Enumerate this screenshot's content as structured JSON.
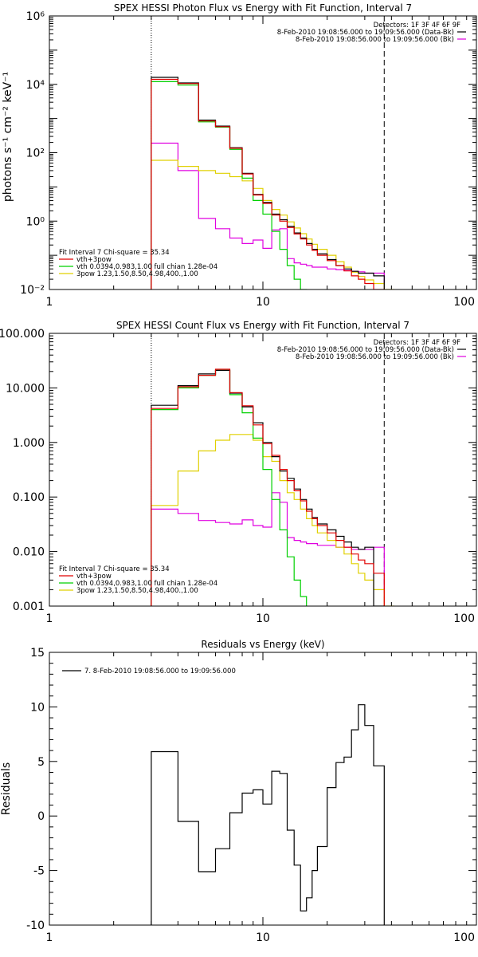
{
  "chart_data": [
    {
      "type": "line",
      "title": "SPEX HESSI Photon Flux vs Energy with Fit Function, Interval 7",
      "ylabel": "photons s⁻¹ cm⁻² keV⁻¹",
      "xscale": "log",
      "yscale": "log",
      "xlim": [
        1,
        100
      ],
      "ylim": [
        0.01,
        1000000
      ],
      "xticks": [
        "1",
        "10",
        "100"
      ],
      "yticks": [
        "10⁻²",
        "10⁰",
        "10²",
        "10⁴",
        "10⁶"
      ],
      "grid": false,
      "vlines": [
        {
          "x": 3,
          "style": "dotted"
        },
        {
          "x": 37,
          "style": "dashed"
        }
      ],
      "legend_top": {
        "position": "top-right",
        "header": "Detectors: 1F 3F 4F 6F 9F",
        "entries": [
          {
            "label": "8-Feb-2010 19:08:56.000 to 19:09:56.000 (Data-Bk)",
            "color": "#000000"
          },
          {
            "label": "8-Feb-2010 19:08:56.000 to 19:09:56.000 (Bk)",
            "color": "#e000e0"
          }
        ]
      },
      "legend_bottom": {
        "position": "bottom-left",
        "header": "Fit Interval 7   Chi-square = 35.34",
        "entries": [
          {
            "label": "vth+3pow",
            "color": "#e00000"
          },
          {
            "label": "vth 0.0394,0.983,1.00  full chian 1.28e-04",
            "color": "#00d000"
          },
          {
            "label": "3pow 1.23,1.50,8.50,4.98,400.,1.00",
            "color": "#e0d000"
          }
        ]
      },
      "series": [
        {
          "name": "Data-Bk",
          "color": "#000000",
          "edges": [
            3,
            4,
            5,
            6,
            7,
            8,
            9,
            10,
            11,
            12,
            13,
            14,
            15,
            16,
            17,
            18,
            20,
            22,
            24,
            26,
            28,
            30,
            33,
            37
          ],
          "values": [
            16000,
            11000,
            900,
            600,
            140,
            25,
            6,
            3.5,
            1.6,
            1.1,
            0.7,
            0.45,
            0.32,
            0.22,
            0.15,
            0.11,
            0.075,
            0.05,
            0.04,
            0.034,
            0.03,
            0.03,
            0.025
          ]
        },
        {
          "name": "vth+3pow",
          "color": "#e00000",
          "edges": [
            3,
            4,
            5,
            6,
            7,
            8,
            9,
            10,
            11,
            12,
            13,
            14,
            15,
            16,
            17,
            18,
            20,
            22,
            24,
            26,
            28,
            30,
            33,
            37
          ],
          "values": [
            14000,
            10500,
            850,
            580,
            135,
            24,
            5.8,
            3.3,
            1.5,
            1.0,
            0.65,
            0.42,
            0.3,
            0.2,
            0.14,
            0.1,
            0.07,
            0.05,
            0.035,
            0.025,
            0.02,
            0.015,
            0.01
          ]
        },
        {
          "name": "vth",
          "color": "#00d000",
          "edges": [
            3,
            4,
            5,
            6,
            7,
            8,
            9,
            10,
            11,
            12,
            13,
            14,
            15,
            16
          ],
          "values": [
            12000,
            9500,
            800,
            560,
            125,
            18,
            4.0,
            1.6,
            0.5,
            0.15,
            0.05,
            0.02,
            0.01
          ]
        },
        {
          "name": "3pow",
          "color": "#e0d000",
          "edges": [
            3,
            4,
            5,
            6,
            7,
            8,
            9,
            10,
            11,
            12,
            13,
            14,
            15,
            16,
            17,
            18,
            20,
            22,
            24,
            26,
            28,
            30,
            33,
            37,
            41
          ],
          "values": [
            60,
            40,
            30,
            25,
            20,
            15,
            9,
            4,
            2.2,
            1.5,
            0.95,
            0.63,
            0.43,
            0.3,
            0.21,
            0.15,
            0.1,
            0.065,
            0.045,
            0.032,
            0.024,
            0.019,
            0.015,
            0.01
          ]
        },
        {
          "name": "Bk",
          "color": "#e000e0",
          "edges": [
            3,
            4,
            5,
            6,
            7,
            8,
            9,
            10,
            11,
            12,
            13,
            14,
            15,
            16,
            17,
            18,
            20,
            22,
            24,
            26,
            28,
            30,
            33,
            37
          ],
          "values": [
            190,
            30,
            1.2,
            0.6,
            0.32,
            0.22,
            0.28,
            0.16,
            0.55,
            0.6,
            0.08,
            0.06,
            0.055,
            0.05,
            0.045,
            0.045,
            0.04,
            0.038,
            0.036,
            0.034,
            0.033,
            0.03,
            0.03
          ]
        }
      ]
    },
    {
      "type": "line",
      "title": "SPEX HESSI Count Flux vs Energy with Fit Function, Interval 7",
      "ylabel": "",
      "xscale": "log",
      "yscale": "log",
      "xlim": [
        1,
        100
      ],
      "ylim": [
        0.001,
        100
      ],
      "xticks": [
        "1",
        "10",
        "100"
      ],
      "yticks": [
        "0.001",
        "0.010",
        "0.100",
        "1.000",
        "10.000",
        "100.000"
      ],
      "grid": false,
      "vlines": [
        {
          "x": 3,
          "style": "dotted"
        },
        {
          "x": 37,
          "style": "dashed"
        }
      ],
      "legend_top": {
        "position": "top-right",
        "header": "Detectors: 1F 3F 4F 6F 9F",
        "entries": [
          {
            "label": "8-Feb-2010 19:08:56.000 to 19:09:56.000 (Data-Bk)",
            "color": "#000000"
          },
          {
            "label": "8-Feb-2010 19:08:56.000 to 19:09:56.000 (Bk)",
            "color": "#e000e0"
          }
        ]
      },
      "legend_bottom": {
        "position": "bottom-left",
        "header": "Fit Interval 7   Chi-square = 35.34",
        "entries": [
          {
            "label": "vth+3pow",
            "color": "#e00000"
          },
          {
            "label": "vth 0.0394,0.983,1.00  full chian 1.28e-04",
            "color": "#00d000"
          },
          {
            "label": "3pow 1.23,1.50,8.50,4.98,400.,1.00",
            "color": "#e0d000"
          }
        ]
      },
      "series": [
        {
          "name": "Data-Bk",
          "color": "#000000",
          "edges": [
            3,
            4,
            5,
            6,
            7,
            8,
            9,
            10,
            11,
            12,
            13,
            14,
            15,
            16,
            17,
            18,
            20,
            22,
            24,
            26,
            28,
            30,
            33,
            37
          ],
          "values": [
            4.8,
            11,
            18,
            21,
            8,
            4.5,
            2.3,
            1.0,
            0.55,
            0.3,
            0.22,
            0.14,
            0.09,
            0.06,
            0.042,
            0.032,
            0.025,
            0.019,
            0.015,
            0.012,
            0.011,
            0.012,
            0.001
          ]
        },
        {
          "name": "vth+3pow",
          "color": "#e00000",
          "edges": [
            3,
            4,
            5,
            6,
            7,
            8,
            9,
            10,
            11,
            12,
            13,
            14,
            15,
            16,
            17,
            18,
            20,
            22,
            24,
            26,
            28,
            30,
            33,
            37
          ],
          "values": [
            4.2,
            10.5,
            17,
            22,
            8.2,
            4.7,
            2.1,
            0.95,
            0.58,
            0.32,
            0.2,
            0.13,
            0.085,
            0.055,
            0.04,
            0.03,
            0.022,
            0.016,
            0.012,
            0.009,
            0.007,
            0.006,
            0.004
          ]
        },
        {
          "name": "vth",
          "color": "#00d000",
          "edges": [
            3,
            4,
            5,
            6,
            7,
            8,
            9,
            10,
            11,
            12,
            13,
            14,
            15,
            16
          ],
          "values": [
            4.0,
            10,
            17,
            21,
            7.5,
            3.5,
            1.2,
            0.32,
            0.09,
            0.025,
            0.008,
            0.003,
            0.0015
          ]
        },
        {
          "name": "3pow",
          "color": "#e0d000",
          "edges": [
            3,
            4,
            5,
            6,
            7,
            8,
            9,
            10,
            11,
            12,
            13,
            14,
            15,
            16,
            17,
            18,
            20,
            22,
            24,
            26,
            28,
            30,
            33,
            37,
            41
          ],
          "values": [
            0.07,
            0.3,
            0.7,
            1.1,
            1.4,
            1.4,
            1.1,
            0.55,
            0.45,
            0.2,
            0.12,
            0.09,
            0.06,
            0.04,
            0.03,
            0.022,
            0.016,
            0.012,
            0.009,
            0.006,
            0.004,
            0.003,
            0.002,
            0.001
          ]
        },
        {
          "name": "Bk",
          "color": "#e000e0",
          "edges": [
            3,
            4,
            5,
            6,
            7,
            8,
            9,
            10,
            11,
            12,
            13,
            14,
            15,
            16,
            17,
            18,
            20,
            22,
            24,
            26,
            28,
            30,
            33,
            37
          ],
          "values": [
            0.06,
            0.05,
            0.037,
            0.034,
            0.032,
            0.038,
            0.03,
            0.028,
            0.12,
            0.08,
            0.018,
            0.016,
            0.015,
            0.014,
            0.014,
            0.013,
            0.013,
            0.012,
            0.012,
            0.011,
            0.011,
            0.011,
            0.012
          ]
        }
      ]
    },
    {
      "type": "line",
      "title": "Residuals vs Energy (keV)",
      "ylabel": "Residuals",
      "xscale": "log",
      "yscale": "linear",
      "xlim": [
        1,
        100
      ],
      "ylim": [
        -10,
        15
      ],
      "xticks": [
        "1",
        "10",
        "100"
      ],
      "yticks": [
        "-10",
        "-5",
        "0",
        "5",
        "10",
        "15"
      ],
      "grid": false,
      "legend_top": {
        "position": "top-left",
        "header": "",
        "entries": [
          {
            "label": "7.  8-Feb-2010 19:08:56.000 to 19:09:56.000",
            "color": "#000000"
          }
        ]
      },
      "series": [
        {
          "name": "7.",
          "color": "#000000",
          "edges": [
            3,
            4,
            5,
            6,
            7,
            8,
            9,
            10,
            11,
            12,
            13,
            14,
            15,
            16,
            17,
            18,
            20,
            22,
            24,
            26,
            28,
            30,
            33,
            37
          ],
          "values": [
            5.9,
            -0.5,
            -5.1,
            -3.0,
            0.3,
            2.1,
            2.4,
            1.1,
            4.1,
            3.9,
            -1.3,
            -4.5,
            -8.7,
            -7.5,
            -5.0,
            -2.8,
            2.6,
            4.9,
            5.4,
            7.9,
            10.2,
            8.3,
            4.6
          ]
        }
      ]
    }
  ]
}
